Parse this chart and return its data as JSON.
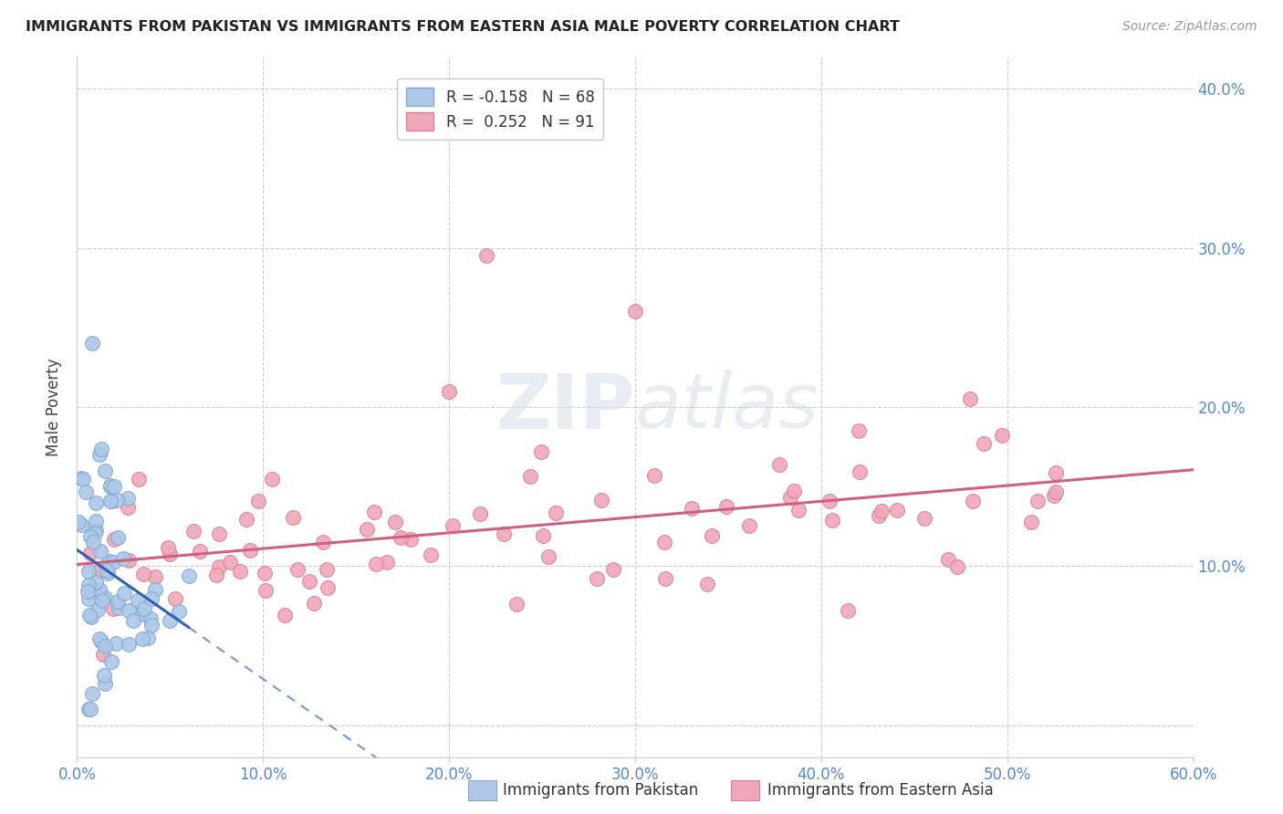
{
  "title": "IMMIGRANTS FROM PAKISTAN VS IMMIGRANTS FROM EASTERN ASIA MALE POVERTY CORRELATION CHART",
  "source": "Source: ZipAtlas.com",
  "ylabel": "Male Poverty",
  "xlim": [
    0.0,
    0.6
  ],
  "ylim": [
    -0.02,
    0.42
  ],
  "x_ticks": [
    0.0,
    0.1,
    0.2,
    0.3,
    0.4,
    0.5,
    0.6
  ],
  "x_tick_labels": [
    "0.0%",
    "10.0%",
    "20.0%",
    "30.0%",
    "40.0%",
    "50.0%",
    "60.0%"
  ],
  "y_ticks": [
    0.0,
    0.1,
    0.2,
    0.3,
    0.4
  ],
  "y_tick_labels_right": [
    "",
    "10.0%",
    "20.0%",
    "30.0%",
    "40.0%"
  ],
  "pakistan_color": "#adc8e8",
  "pakistan_edge_color": "#80a8d0",
  "eastern_asia_color": "#f0a8b8",
  "eastern_asia_edge_color": "#d88098",
  "pakistan_R": -0.158,
  "pakistan_N": 68,
  "eastern_asia_R": 0.252,
  "eastern_asia_N": 91,
  "pakistan_line_color": "#3060b0",
  "eastern_asia_line_color": "#d06080",
  "grid_color": "#cccccc",
  "background_color": "#ffffff",
  "watermark": "ZIPatlas",
  "legend_labels": [
    "Immigrants from Pakistan",
    "Immigrants from Eastern Asia"
  ]
}
